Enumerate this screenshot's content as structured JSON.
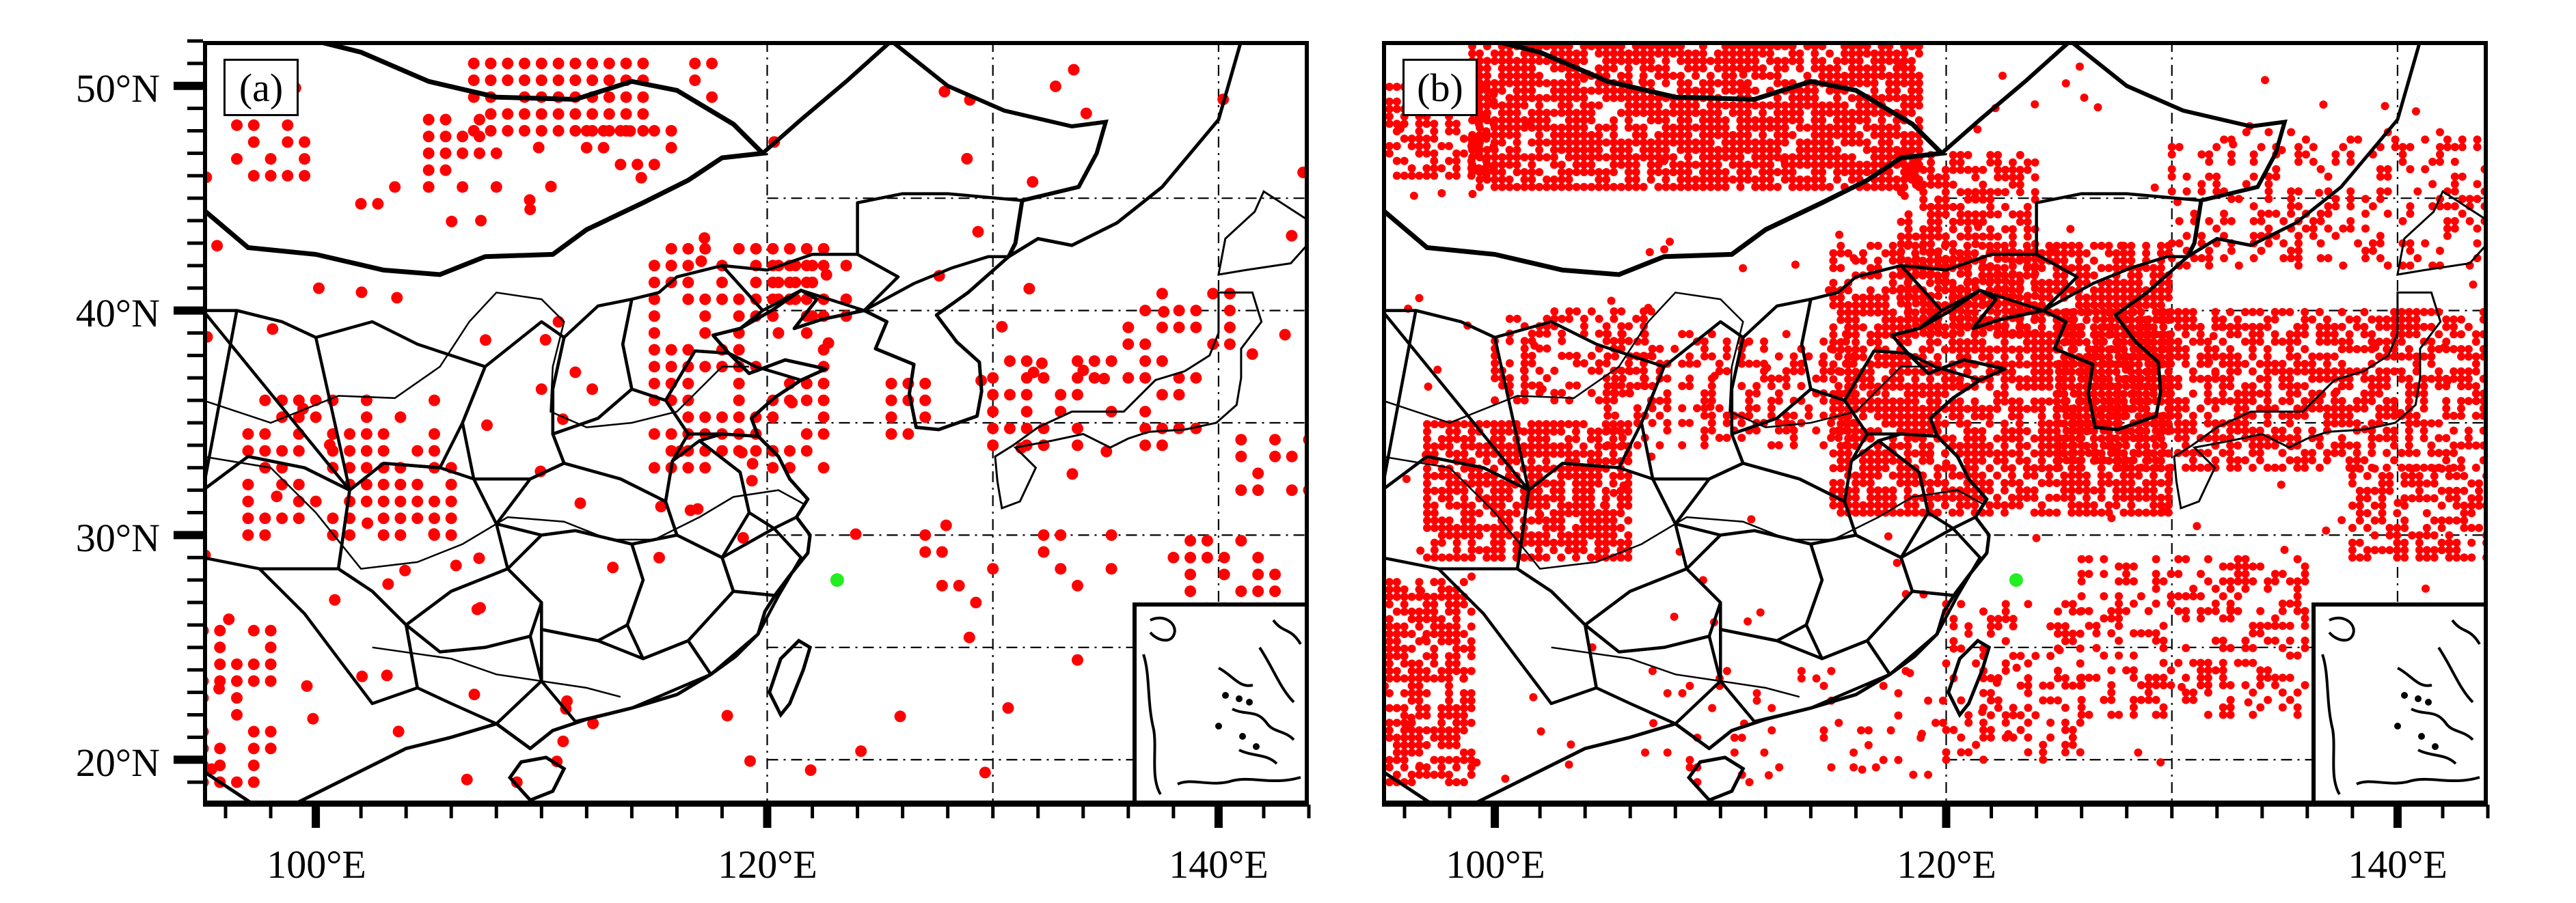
{
  "panels": [
    {
      "id": "a",
      "label": "(a)"
    },
    {
      "id": "b",
      "label": "(b)"
    }
  ],
  "axes": {
    "y_ticks": [
      "50°N",
      "40°N",
      "30°N",
      "20°N"
    ],
    "x_ticks": [
      "100°E",
      "120°E",
      "140°E"
    ],
    "lon_range": [
      95,
      144
    ],
    "lat_range": [
      18,
      52
    ]
  },
  "colors": {
    "points": "#ff0000",
    "station": "#22ee22",
    "border": "#000000",
    "grid": "#000000"
  },
  "map_features": {
    "station_marker": "green-dot",
    "point_marker": "red-dot",
    "gridlines": "dash-dot"
  }
}
